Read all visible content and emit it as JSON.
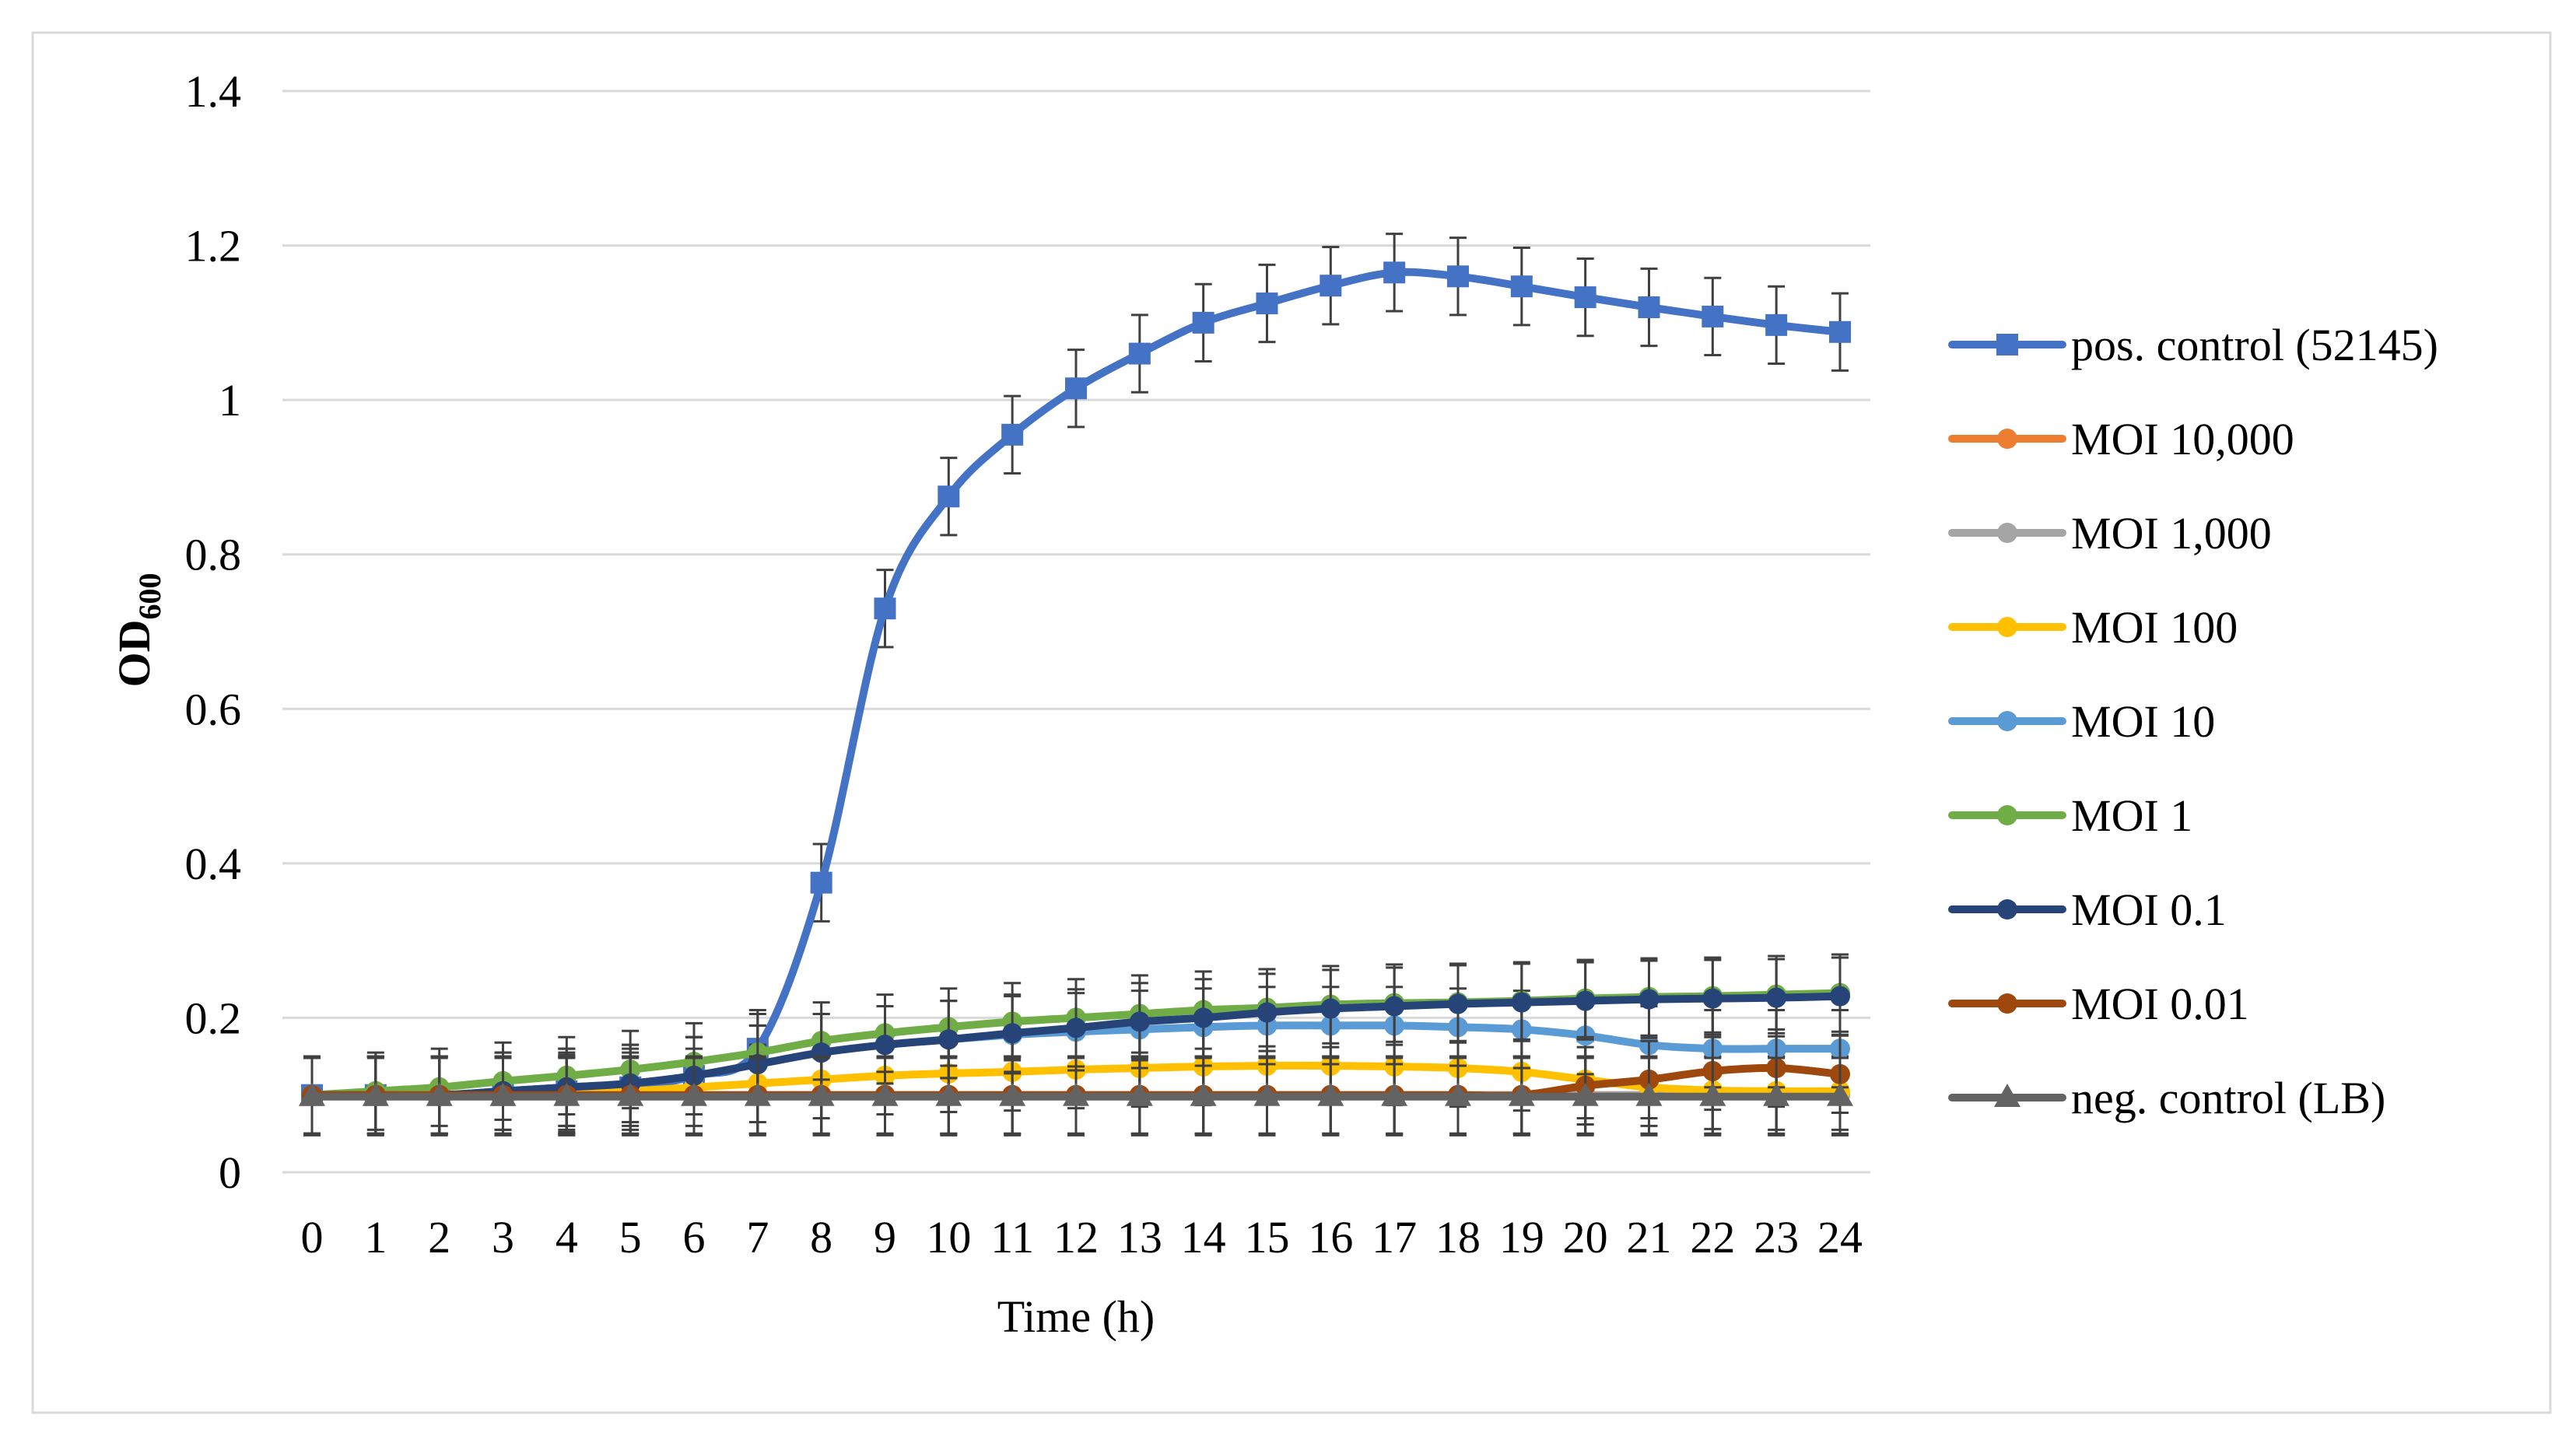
{
  "chart_data": {
    "type": "line",
    "xlabel": "Time (h)",
    "ylabel": "OD",
    "ylabel_subscript": "600",
    "x": [
      0,
      1,
      2,
      3,
      4,
      5,
      6,
      7,
      8,
      9,
      10,
      11,
      12,
      13,
      14,
      15,
      16,
      17,
      18,
      19,
      20,
      21,
      22,
      23,
      24
    ],
    "ylim": [
      0,
      1.4
    ],
    "yticks": [
      "0",
      "0.2",
      "0.4",
      "0.6",
      "0.8",
      "1",
      "1.2",
      "1.4"
    ],
    "grid": true,
    "legend_position": "right",
    "series": [
      {
        "name": "pos. control (52145)",
        "color": "#4472C4",
        "marker": "square",
        "error": 0.05,
        "values": [
          0.1,
          0.1,
          0.1,
          0.1,
          0.105,
          0.11,
          0.125,
          0.16,
          0.375,
          0.73,
          0.875,
          0.955,
          1.015,
          1.06,
          1.1,
          1.125,
          1.148,
          1.165,
          1.16,
          1.147,
          1.133,
          1.12,
          1.108,
          1.097,
          1.088
        ]
      },
      {
        "name": "MOI 10,000",
        "color": "#ED7D31",
        "marker": "circle",
        "error": 0.05,
        "values": [
          0.1,
          0.1,
          0.1,
          0.1,
          0.1,
          0.1,
          0.1,
          0.1,
          0.1,
          0.1,
          0.1,
          0.1,
          0.1,
          0.1,
          0.1,
          0.1,
          0.1,
          0.1,
          0.1,
          0.1,
          0.1,
          0.1,
          0.1,
          0.1,
          0.1
        ]
      },
      {
        "name": "MOI 1,000",
        "color": "#A5A5A5",
        "marker": "circle",
        "error": 0.05,
        "values": [
          0.1,
          0.1,
          0.1,
          0.1,
          0.1,
          0.1,
          0.1,
          0.1,
          0.1,
          0.1,
          0.1,
          0.1,
          0.1,
          0.1,
          0.1,
          0.1,
          0.1,
          0.1,
          0.1,
          0.1,
          0.1,
          0.1,
          0.1,
          0.1,
          0.1
        ]
      },
      {
        "name": "MOI 100",
        "color": "#FFC000",
        "marker": "circle",
        "error": 0.05,
        "values": [
          0.1,
          0.1,
          0.1,
          0.1,
          0.102,
          0.105,
          0.11,
          0.115,
          0.12,
          0.125,
          0.128,
          0.13,
          0.133,
          0.135,
          0.137,
          0.138,
          0.138,
          0.137,
          0.135,
          0.13,
          0.12,
          0.11,
          0.106,
          0.105,
          0.105
        ]
      },
      {
        "name": "MOI 10",
        "color": "#5B9BD5",
        "marker": "circle",
        "error": 0.05,
        "values": [
          0.1,
          0.1,
          0.1,
          0.105,
          0.11,
          0.115,
          0.125,
          0.14,
          0.155,
          0.165,
          0.172,
          0.178,
          0.182,
          0.185,
          0.188,
          0.19,
          0.19,
          0.19,
          0.188,
          0.185,
          0.177,
          0.165,
          0.16,
          0.16,
          0.16
        ]
      },
      {
        "name": "MOI 1",
        "color": "#70AD47",
        "marker": "circle",
        "error": 0.05,
        "values": [
          0.1,
          0.105,
          0.11,
          0.118,
          0.125,
          0.133,
          0.143,
          0.155,
          0.17,
          0.18,
          0.188,
          0.195,
          0.2,
          0.205,
          0.21,
          0.213,
          0.217,
          0.219,
          0.22,
          0.222,
          0.225,
          0.227,
          0.228,
          0.23,
          0.232
        ]
      },
      {
        "name": "MOI 0.1",
        "color": "#264478",
        "marker": "circle",
        "error": 0.05,
        "values": [
          0.1,
          0.1,
          0.1,
          0.105,
          0.11,
          0.115,
          0.125,
          0.14,
          0.155,
          0.165,
          0.172,
          0.18,
          0.187,
          0.195,
          0.2,
          0.207,
          0.212,
          0.215,
          0.218,
          0.22,
          0.222,
          0.224,
          0.225,
          0.226,
          0.228
        ]
      },
      {
        "name": "MOI 0.01",
        "color": "#9E480E",
        "marker": "circle",
        "error": 0.05,
        "values": [
          0.1,
          0.1,
          0.1,
          0.1,
          0.1,
          0.1,
          0.1,
          0.1,
          0.1,
          0.1,
          0.1,
          0.1,
          0.1,
          0.1,
          0.1,
          0.1,
          0.1,
          0.1,
          0.1,
          0.1,
          0.112,
          0.12,
          0.131,
          0.135,
          0.127
        ]
      },
      {
        "name": "neg. control (LB)",
        "color": "#636363",
        "marker": "triangle",
        "error": 0.05,
        "values": [
          0.098,
          0.098,
          0.098,
          0.098,
          0.098,
          0.098,
          0.098,
          0.098,
          0.098,
          0.098,
          0.098,
          0.098,
          0.098,
          0.098,
          0.098,
          0.098,
          0.098,
          0.098,
          0.098,
          0.098,
          0.098,
          0.098,
          0.098,
          0.098,
          0.098
        ]
      }
    ]
  },
  "colors": {
    "grid": "#D9D9D9",
    "frame": "#D9D9D9",
    "error_bar": "#404040",
    "text": "#000000"
  }
}
